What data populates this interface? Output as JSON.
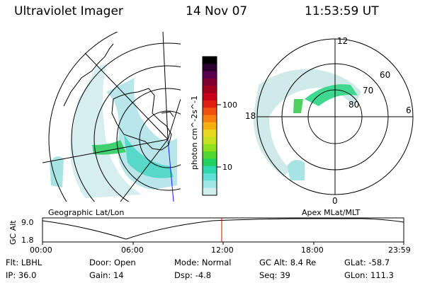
{
  "header": {
    "title": "Ultraviolet Imager",
    "date": "14 Nov 07",
    "time": "11:53:59 UT"
  },
  "left_panel": {
    "caption": "Geographic Lat/Lon"
  },
  "right_panel": {
    "caption": "Apex MLat/MLT",
    "mlt_labels": {
      "top": "12",
      "right": "6",
      "bottom": "0",
      "left": "18"
    },
    "mlat_labels": [
      "60",
      "70",
      "80"
    ]
  },
  "colorbar": {
    "unit_label": "photon cm^-2s^-1",
    "ticks": [
      "100",
      "10"
    ],
    "colors": [
      "#000000",
      "#2a0030",
      "#5a0050",
      "#800030",
      "#a0001a",
      "#c80018",
      "#e02010",
      "#f05010",
      "#f88010",
      "#f8b010",
      "#e8d820",
      "#c8e020",
      "#90e020",
      "#50d830",
      "#20d060",
      "#30d8b0",
      "#60e0d8",
      "#a0e8e8",
      "#d0eeee"
    ]
  },
  "timeline": {
    "axis_label": "GC Alt",
    "y_ticks": [
      "9.0",
      "1.8"
    ],
    "x_ticks": [
      "00:00",
      "06:00",
      "12:00",
      "18:00",
      "23:59"
    ],
    "marker_time": "11:53:59"
  },
  "footer": {
    "row1": [
      {
        "label": "Flt:",
        "value": "LBHL"
      },
      {
        "label": "Door:",
        "value": "Open"
      },
      {
        "label": "Mode:",
        "value": "Normal"
      },
      {
        "label": "GC Alt:",
        "value": "8.4 Re"
      },
      {
        "label": "GLat:",
        "value": "-58.7"
      }
    ],
    "row2": [
      {
        "label": "IP:",
        "value": "36.0"
      },
      {
        "label": "Gain:",
        "value": "14"
      },
      {
        "label": "Dsp:",
        "value": "-4.8"
      },
      {
        "label": "Seq:",
        "value": "39"
      },
      {
        "label": "GLon:",
        "value": "111.3"
      }
    ]
  }
}
